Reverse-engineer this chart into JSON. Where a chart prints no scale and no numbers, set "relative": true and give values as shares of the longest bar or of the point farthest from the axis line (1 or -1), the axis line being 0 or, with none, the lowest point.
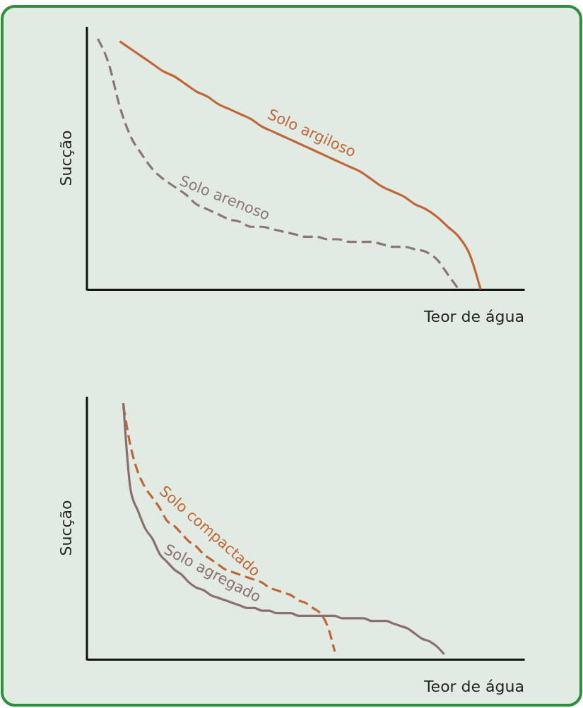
{
  "chart_data": [
    {
      "type": "line",
      "relative": true,
      "ylabel": "Sucção",
      "xlabel": "Teor de água",
      "legend": false,
      "grid": false,
      "categories": [
        null,
        null,
        null,
        null,
        null,
        null,
        null,
        null,
        null,
        null,
        null,
        null,
        null,
        null,
        null,
        null,
        null,
        null,
        null,
        null,
        null,
        null,
        null,
        null,
        null,
        null,
        null,
        null,
        null,
        null,
        null,
        null,
        null,
        null,
        null,
        null,
        null,
        null,
        null,
        null,
        null
      ],
      "series": [
        {
          "name": "Solo argiloso",
          "color": "#c0673a",
          "line_style": "solid",
          "values": [
            null,
            null,
            null,
            0.99,
            0.96,
            0.93,
            0.9,
            0.87,
            0.85,
            0.82,
            0.79,
            0.77,
            0.74,
            0.72,
            0.7,
            0.68,
            0.65,
            0.63,
            0.61,
            0.59,
            0.57,
            0.55,
            0.53,
            0.51,
            0.49,
            0.47,
            0.44,
            0.41,
            0.39,
            0.37,
            0.34,
            0.32,
            0.29,
            0.25,
            0.21,
            0.14,
            0,
            null,
            null,
            null,
            null
          ]
        },
        {
          "name": "Solo arenoso",
          "color": "#8c7673",
          "line_style": "dashed",
          "values": [
            null,
            1,
            0.9,
            0.73,
            0.61,
            0.54,
            0.48,
            0.44,
            0.41,
            0.38,
            0.34,
            0.32,
            0.3,
            0.28,
            0.27,
            0.25,
            0.25,
            0.24,
            0.23,
            0.22,
            0.21,
            0.21,
            0.2,
            0.2,
            0.19,
            0.19,
            0.19,
            0.18,
            0.17,
            0.17,
            0.16,
            0.15,
            0.12,
            0.06,
            0,
            null,
            null,
            null,
            null,
            null,
            null
          ]
        }
      ]
    },
    {
      "type": "line",
      "relative": true,
      "ylabel": "Sucção",
      "xlabel": "Teor de água",
      "legend": false,
      "grid": false,
      "categories": [
        null,
        null,
        null,
        null,
        null,
        null,
        null,
        null,
        null,
        null,
        null,
        null,
        null,
        null,
        null,
        null,
        null,
        null,
        null,
        null,
        null,
        null,
        null,
        null,
        null,
        null,
        null,
        null,
        null,
        null,
        null,
        null,
        null,
        null,
        null,
        null,
        null,
        null,
        null,
        null,
        null,
        null,
        null,
        null,
        null,
        null,
        null,
        null,
        null,
        null,
        null,
        null,
        null,
        null,
        null,
        null,
        null,
        null,
        null,
        null,
        null
      ],
      "series": [
        {
          "name": "Solo compactado",
          "color": "#c0673a",
          "line_style": "dashed",
          "values": [
            null,
            null,
            null,
            null,
            null,
            0.99,
            0.83,
            0.73,
            0.67,
            0.63,
            0.59,
            0.54,
            0.52,
            0.49,
            0.46,
            0.44,
            0.41,
            0.39,
            0.37,
            0.35,
            0.34,
            0.33,
            0.32,
            0.31,
            0.3,
            0.28,
            0.27,
            0.26,
            0.25,
            0.23,
            0.22,
            0.2,
            0.18,
            0.13,
            0.03,
            null,
            null,
            null,
            null,
            null,
            null,
            null,
            null,
            null,
            null,
            null,
            null,
            null,
            null,
            null,
            null,
            null,
            null,
            null,
            null,
            null,
            null,
            null,
            null,
            null,
            null
          ]
        },
        {
          "name": "Solo agregado",
          "color": "#8c6e6e",
          "line_style": "solid",
          "values": [
            null,
            null,
            null,
            null,
            null,
            1,
            0.66,
            0.58,
            0.51,
            0.47,
            0.41,
            0.38,
            0.35,
            0.33,
            0.3,
            0.28,
            0.27,
            0.25,
            0.24,
            0.23,
            0.22,
            0.21,
            0.2,
            0.2,
            0.19,
            0.19,
            0.18,
            0.18,
            0.18,
            0.17,
            0.17,
            0.17,
            0.17,
            0.17,
            0.17,
            0.16,
            0.16,
            0.16,
            0.16,
            0.15,
            0.15,
            0.15,
            0.14,
            0.13,
            0.12,
            0.1,
            0.08,
            0.07,
            0.05,
            0.02,
            null,
            null,
            null,
            null,
            null,
            null,
            null,
            null,
            null,
            null,
            null
          ]
        }
      ]
    }
  ]
}
